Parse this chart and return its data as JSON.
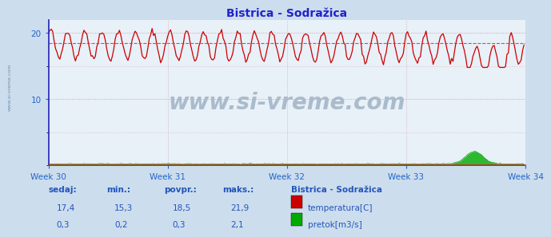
{
  "title": "Bistrica - Sodražica",
  "title_color": "#2222cc",
  "bg_color": "#ccdded",
  "plot_bg_color": "#e8f0f8",
  "grid_color": "#cc8888",
  "grid_color_h": "#cc8888",
  "left_spine_color": "#2222bb",
  "bottom_spine_color": "#cc2222",
  "temp_color": "#cc0000",
  "flow_color": "#00aa00",
  "avg_line_color": "#cc3333",
  "weeks": [
    "Week 30",
    "Week 31",
    "Week 32",
    "Week 33",
    "Week 34"
  ],
  "week_label_color": "#2266cc",
  "xlim": [
    0,
    336
  ],
  "ylim": [
    0,
    22
  ],
  "yticks": [
    10,
    20
  ],
  "temp_min": 15.3,
  "temp_max": 21.9,
  "temp_avg": 18.5,
  "temp_current": 17.4,
  "flow_min": 0.2,
  "flow_max": 2.1,
  "flow_avg": 0.3,
  "flow_current": 0.3,
  "n_points": 336,
  "watermark_text": "www.si-vreme.com",
  "watermark_color": "#aabbcc",
  "watermark_fontsize": 20,
  "legend_title": "Bistrica - Sodražica",
  "legend_temp": "temperatura[C]",
  "legend_flow": "pretok[m3/s]",
  "footer_labels": [
    "sedaj:",
    "min.:",
    "povpr.:",
    "maks.:"
  ],
  "footer_label_color": "#2255bb",
  "footer_value_color": "#2255bb",
  "footer_values_temp": [
    "17,4",
    "15,3",
    "18,5",
    "21,9"
  ],
  "footer_values_flow": [
    "0,3",
    "0,2",
    "0,3",
    "2,1"
  ]
}
